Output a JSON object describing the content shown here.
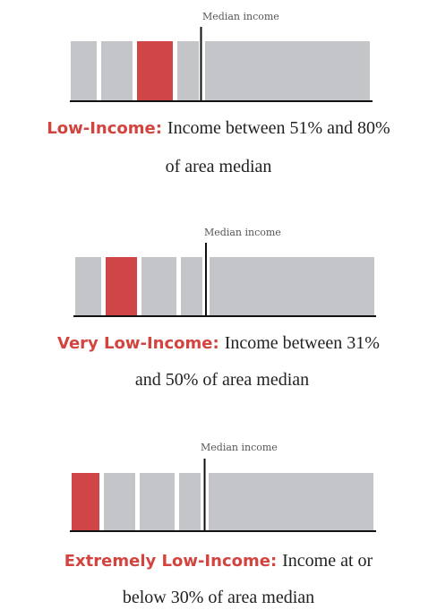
{
  "panels": [
    {
      "median_label": "Median income",
      "term": "Low-Income:",
      "description": [
        "Income between 51% and 80%",
        "of area median"
      ]
    },
    {
      "median_label": "Median income",
      "term": "Very Low-Income:",
      "description": [
        "Income between 31%",
        "and 50% of area median"
      ]
    },
    {
      "median_label": "Median income",
      "term": "Extremely Low-Income:",
      "description": [
        "Income at or",
        "below 30% of area median"
      ]
    }
  ]
}
